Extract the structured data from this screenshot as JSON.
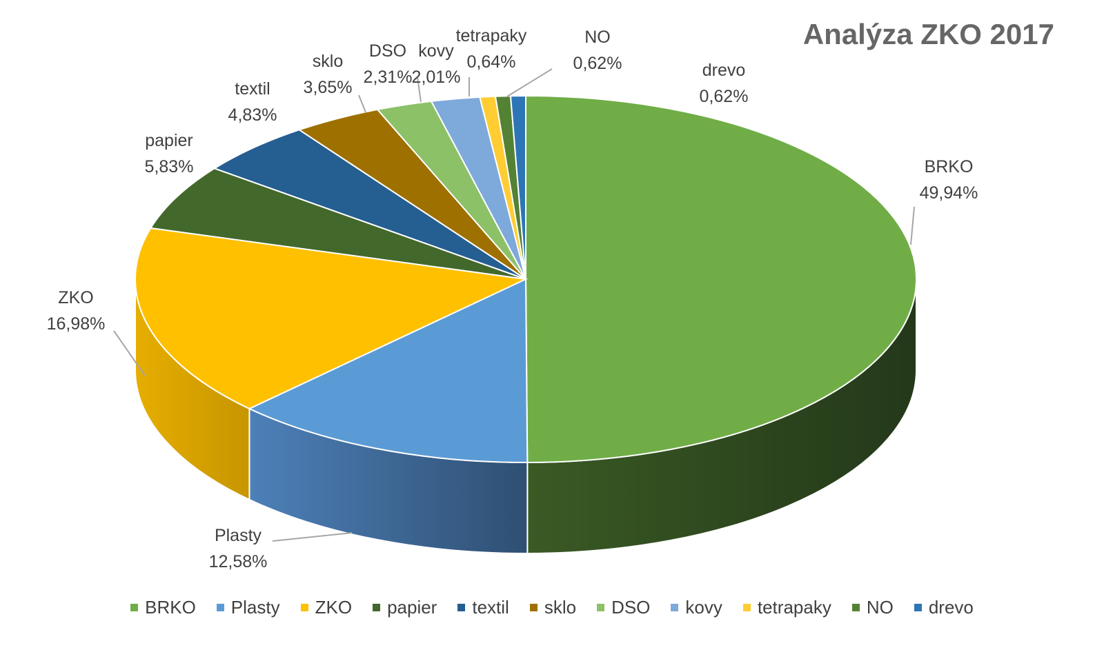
{
  "chart_data": {
    "type": "pie",
    "title": "Analýza ZKO 2017",
    "slices": [
      {
        "name": "BRKO",
        "value": 49.94,
        "label": "49,94%",
        "color": "#70AD47",
        "side": "#2F4A1C"
      },
      {
        "name": "Plasty",
        "value": 12.58,
        "label": "12,58%",
        "color": "#5B9BD5",
        "side": "#3F6E9A"
      },
      {
        "name": "ZKO",
        "value": 16.98,
        "label": "16,98%",
        "color": "#FFC000",
        "side": "#D9A300"
      },
      {
        "name": "papier",
        "value": 5.83,
        "label": "5,83%",
        "color": "#43682B",
        "side": "#2E4A1E"
      },
      {
        "name": "textil",
        "value": 4.83,
        "label": "4,83%",
        "color": "#255E91",
        "side": "#1A4468"
      },
      {
        "name": "sklo",
        "value": 3.65,
        "label": "3,65%",
        "color": "#9E7000",
        "side": "#6E4E00"
      },
      {
        "name": "DSO",
        "value": 2.31,
        "label": "2,31%",
        "color": "#8CC168",
        "side": "#6A9A4A"
      },
      {
        "name": "kovy",
        "value": 2.01,
        "label": "2,01%",
        "color": "#7EA9DB",
        "side": "#5A84B3"
      },
      {
        "name": "tetrapaky",
        "value": 0.64,
        "label": "0,64%",
        "color": "#FFCD33",
        "side": "#D9A300"
      },
      {
        "name": "NO",
        "value": 0.62,
        "label": "0,62%",
        "color": "#548235",
        "side": "#3A5C24"
      },
      {
        "name": "drevo",
        "value": 0.62,
        "label": "0,62%",
        "color": "#2E75B6",
        "side": "#1F5486"
      }
    ],
    "legend_position": "bottom"
  }
}
